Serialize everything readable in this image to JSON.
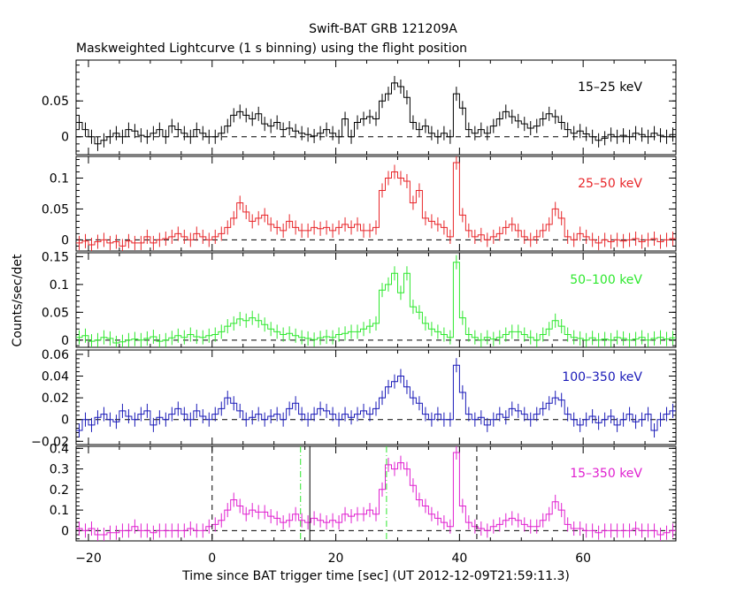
{
  "chart_data": {
    "type": "line",
    "title": "Swift-BAT GRB 121209A",
    "subtitle": "Maskweighted Lightcurve (1 s binning) using the flight position",
    "xlabel": "Time since BAT trigger time [sec] (UT 2012-12-09T21:59:11.3)",
    "ylabel": "Counts/sec/det",
    "xlim": [
      -22,
      75
    ],
    "x_ticks": [
      -20,
      0,
      20,
      40,
      60
    ],
    "x_tick_labels": [
      "−20",
      "0",
      "20",
      "40",
      "60"
    ],
    "time_start": -22,
    "bin_width": 1,
    "panels": [
      {
        "label": "15–25 keV",
        "color": "#000000",
        "ylim": [
          -0.025,
          0.107
        ],
        "y_ticks": [
          0,
          0.05
        ],
        "y_tick_labels": [
          "0",
          "0.05"
        ],
        "values": [
          0.02,
          0.01,
          0.0,
          -0.01,
          -0.005,
          0.0,
          0.005,
          0.0,
          0.01,
          0.008,
          0.002,
          0.0,
          0.005,
          0.01,
          0.0,
          0.015,
          0.01,
          0.005,
          0.0,
          0.01,
          0.005,
          0.0,
          0.0,
          0.005,
          0.015,
          0.03,
          0.035,
          0.03,
          0.025,
          0.032,
          0.018,
          0.015,
          0.02,
          0.01,
          0.012,
          0.008,
          0.005,
          0.003,
          0.001,
          0.005,
          0.01,
          0.005,
          0.0,
          0.025,
          0.0,
          0.02,
          0.025,
          0.028,
          0.025,
          0.05,
          0.06,
          0.075,
          0.07,
          0.055,
          0.02,
          0.01,
          0.015,
          0.005,
          0.0,
          0.005,
          0.0,
          0.06,
          0.04,
          0.01,
          0.005,
          0.01,
          0.005,
          0.015,
          0.025,
          0.035,
          0.028,
          0.022,
          0.018,
          0.012,
          0.015,
          0.025,
          0.032,
          0.028,
          0.02,
          0.01,
          0.005,
          0.008,
          0.004,
          0.0,
          -0.005,
          -0.002,
          0.003,
          0.0,
          0.002,
          0.0,
          0.005,
          0.003,
          0.0,
          0.005,
          0.002,
          0.0,
          0.003
        ]
      },
      {
        "label": "25–50 keV",
        "color": "#e8262a",
        "ylim": [
          -0.018,
          0.135
        ],
        "y_ticks": [
          0,
          0.05,
          0.1
        ],
        "y_tick_labels": [
          "0",
          "0.05",
          "0.1"
        ],
        "values": [
          -0.005,
          -0.002,
          -0.008,
          -0.003,
          0.0,
          -0.005,
          -0.003,
          -0.01,
          -0.002,
          -0.005,
          -0.005,
          0.005,
          -0.005,
          0.0,
          0.002,
          0.005,
          0.01,
          0.005,
          0.0,
          0.01,
          0.005,
          0.0,
          0.005,
          0.01,
          0.02,
          0.035,
          0.06,
          0.045,
          0.03,
          0.035,
          0.04,
          0.025,
          0.02,
          0.015,
          0.03,
          0.02,
          0.015,
          0.015,
          0.02,
          0.018,
          0.02,
          0.015,
          0.02,
          0.025,
          0.02,
          0.025,
          0.015,
          0.015,
          0.02,
          0.08,
          0.1,
          0.11,
          0.1,
          0.095,
          0.06,
          0.08,
          0.035,
          0.03,
          0.025,
          0.02,
          0.005,
          0.125,
          0.04,
          0.015,
          0.005,
          0.008,
          0.0,
          0.005,
          0.01,
          0.02,
          0.025,
          0.015,
          0.005,
          0.0,
          0.005,
          0.015,
          0.025,
          0.05,
          0.035,
          0.005,
          0.0,
          0.01,
          0.005,
          0.0,
          -0.005,
          0.0,
          -0.003,
          0.0,
          -0.002,
          0.0,
          0.002,
          -0.003,
          0.0,
          0.002,
          -0.003,
          0.0,
          0.002
        ]
      },
      {
        "label": "50–100 keV",
        "color": "#2ee82e",
        "ylim": [
          -0.013,
          0.157
        ],
        "y_ticks": [
          0,
          0.05,
          0.1,
          0.15
        ],
        "y_tick_labels": [
          "0",
          "0.05",
          "0.1",
          "0.15"
        ],
        "values": [
          0.005,
          0.008,
          -0.002,
          0.0,
          0.005,
          0.003,
          -0.005,
          -0.003,
          0.0,
          0.002,
          0.0,
          0.003,
          0.006,
          -0.002,
          0.0,
          0.004,
          0.008,
          0.005,
          0.01,
          0.006,
          0.005,
          0.008,
          0.01,
          0.015,
          0.025,
          0.03,
          0.038,
          0.035,
          0.04,
          0.035,
          0.028,
          0.02,
          0.015,
          0.01,
          0.012,
          0.008,
          0.005,
          0.003,
          0.001,
          0.004,
          0.006,
          0.005,
          0.01,
          0.012,
          0.015,
          0.015,
          0.02,
          0.025,
          0.03,
          0.09,
          0.1,
          0.12,
          0.085,
          0.12,
          0.06,
          0.05,
          0.03,
          0.02,
          0.015,
          0.01,
          0.005,
          0.14,
          0.04,
          0.01,
          0.005,
          0.0,
          0.005,
          0.002,
          0.005,
          0.01,
          0.015,
          0.015,
          0.01,
          0.005,
          0.0,
          0.01,
          0.02,
          0.035,
          0.025,
          0.01,
          0.005,
          0.003,
          0.0,
          0.004,
          0.0,
          0.002,
          0.0,
          0.005,
          0.003,
          0.0,
          0.002,
          0.005,
          0.0,
          0.003,
          0.005,
          0.002,
          0.004
        ]
      },
      {
        "label": "100–350 keV",
        "color": "#1a1ab8",
        "ylim": [
          -0.023,
          0.064
        ],
        "y_ticks": [
          -0.02,
          0,
          0.02,
          0.04,
          0.06
        ],
        "y_tick_labels": [
          "−0.02",
          "0",
          "0.02",
          "0.04",
          "0.06"
        ],
        "values": [
          -0.01,
          0.0,
          -0.005,
          0.002,
          0.005,
          0.0,
          -0.002,
          0.008,
          0.003,
          0.0,
          0.005,
          0.008,
          -0.005,
          0.002,
          0.0,
          0.005,
          0.01,
          0.005,
          0.0,
          0.008,
          0.003,
          0.0,
          0.005,
          0.01,
          0.02,
          0.015,
          0.008,
          0.0,
          0.002,
          0.005,
          0.0,
          0.003,
          0.005,
          0.0,
          0.01,
          0.015,
          0.005,
          0.0,
          0.005,
          0.01,
          0.008,
          0.005,
          0.0,
          0.005,
          0.002,
          0.005,
          0.008,
          0.005,
          0.01,
          0.02,
          0.03,
          0.035,
          0.04,
          0.03,
          0.02,
          0.015,
          0.005,
          0.0,
          0.005,
          0.0,
          0.0,
          0.05,
          0.025,
          0.005,
          0.0,
          0.002,
          -0.005,
          0.0,
          0.005,
          0.002,
          0.01,
          0.008,
          0.005,
          0.0,
          0.005,
          0.01,
          0.015,
          0.02,
          0.018,
          0.005,
          0.0,
          -0.005,
          0.0,
          0.003,
          -0.003,
          0.0,
          0.003,
          -0.005,
          0.0,
          0.005,
          -0.002,
          0.0,
          0.005,
          -0.01,
          0.0,
          0.005,
          0.008
        ]
      },
      {
        "label": "15–350 keV",
        "color": "#e020d0",
        "ylim": [
          -0.05,
          0.41
        ],
        "y_ticks": [
          0,
          0.1,
          0.2,
          0.3,
          0.4
        ],
        "y_tick_labels": [
          "0",
          "0.1",
          "0.2",
          "0.3",
          "0.4"
        ],
        "values": [
          0.01,
          0.0,
          0.01,
          -0.02,
          -0.02,
          -0.01,
          -0.01,
          0.0,
          0.0,
          0.02,
          0.0,
          0.0,
          -0.01,
          0.0,
          0.0,
          0.0,
          0.0,
          0.0,
          0.01,
          0.0,
          0.0,
          0.02,
          0.03,
          0.05,
          0.1,
          0.15,
          0.12,
          0.08,
          0.1,
          0.09,
          0.09,
          0.07,
          0.06,
          0.04,
          0.05,
          0.08,
          0.05,
          0.04,
          0.06,
          0.05,
          0.04,
          0.05,
          0.04,
          0.08,
          0.07,
          0.08,
          0.08,
          0.1,
          0.08,
          0.2,
          0.32,
          0.3,
          0.33,
          0.3,
          0.22,
          0.15,
          0.12,
          0.08,
          0.06,
          0.04,
          0.02,
          0.38,
          0.12,
          0.04,
          0.02,
          0.01,
          0.0,
          0.02,
          0.03,
          0.05,
          0.06,
          0.05,
          0.03,
          0.02,
          0.02,
          0.05,
          0.08,
          0.14,
          0.1,
          0.03,
          0.01,
          0.01,
          0.0,
          0.0,
          -0.01,
          0.0,
          0.0,
          0.0,
          0.0,
          0.0,
          0.01,
          0.0,
          0.0,
          0.0,
          -0.02,
          -0.01,
          0.0
        ]
      }
    ],
    "markers": [
      {
        "x": 0,
        "style": "dashed",
        "color": "#000000",
        "panel": "15–350 keV"
      },
      {
        "x": 14.3,
        "style": "dash-dot",
        "color": "#2ee82e",
        "panel": "15–350 keV"
      },
      {
        "x": 15.8,
        "style": "solid",
        "color": "#000000",
        "panel": "15–350 keV"
      },
      {
        "x": 28.2,
        "style": "dash-dot",
        "color": "#2ee82e",
        "panel": "15–350 keV"
      },
      {
        "x": 42.8,
        "style": "dashed",
        "color": "#000000",
        "panel": "15–350 keV"
      }
    ]
  }
}
